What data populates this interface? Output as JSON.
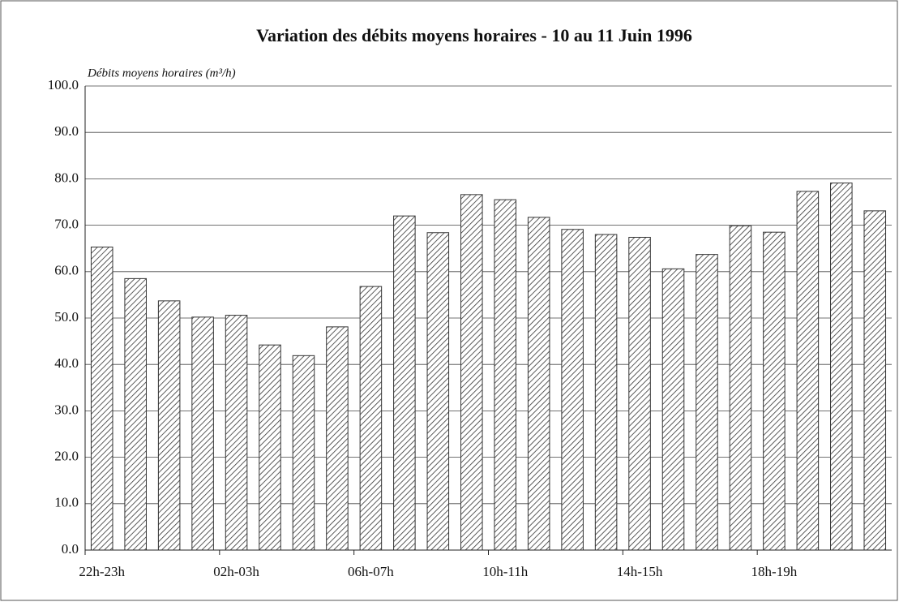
{
  "chart_data": {
    "type": "bar",
    "title": "Variation des débits moyens horaires - 10 au 11 Juin 1996",
    "y_label": "Débits moyens horaires (m³/h)",
    "categories": [
      "22h-23h",
      null,
      null,
      null,
      "02h-03h",
      null,
      null,
      null,
      "06h-07h",
      null,
      null,
      null,
      "10h-11h",
      null,
      null,
      null,
      "14h-15h",
      null,
      null,
      null,
      "18h-19h",
      null,
      null,
      null
    ],
    "values": [
      65.3,
      58.5,
      53.7,
      50.2,
      50.6,
      44.2,
      41.9,
      48.1,
      56.8,
      72.0,
      68.4,
      76.6,
      75.5,
      71.7,
      69.1,
      68.0,
      67.4,
      60.6,
      63.7,
      69.9,
      68.5,
      77.3,
      79.1,
      73.1
    ],
    "color": "#333333",
    "ylim": [
      0,
      100
    ],
    "yticks": [
      {
        "value": 0,
        "label": "0.0"
      },
      {
        "value": 10,
        "label": "10.0"
      },
      {
        "value": 20,
        "label": "20.0"
      },
      {
        "value": 30,
        "label": "30.0"
      },
      {
        "value": 40,
        "label": "40.0"
      },
      {
        "value": 50,
        "label": "50.0"
      },
      {
        "value": 60,
        "label": "60.0"
      },
      {
        "value": 70,
        "label": "70.0"
      },
      {
        "value": 80,
        "label": "80.0"
      },
      {
        "value": 90,
        "label": "90.0"
      },
      {
        "value": 100,
        "label": "100.0"
      }
    ],
    "grid": true
  }
}
